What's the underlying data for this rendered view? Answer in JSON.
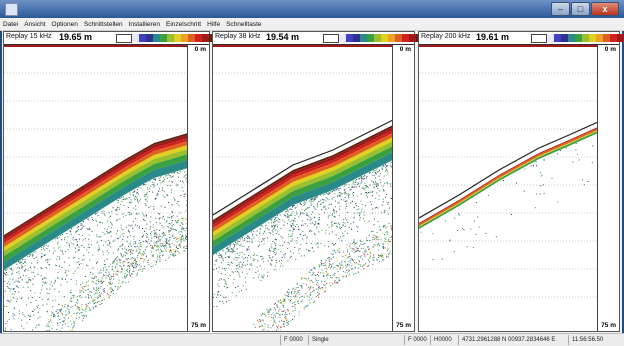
{
  "menu": [
    "Datei",
    "Ansicht",
    "Optionen",
    "Schnittstellen",
    "Installieren",
    "Einzelschritt",
    "Hilfe",
    "Schnelltaste"
  ],
  "window": {
    "minimize": "–",
    "maximize": "□",
    "close": "x"
  },
  "panels": [
    {
      "label": "Replay 15 kHz",
      "depth": "19.65 m",
      "depth_top": "0 m",
      "depth_bottom": "75 m"
    },
    {
      "label": "Replay 38 kHz",
      "depth": "19.54 m",
      "depth_top": "0 m",
      "depth_bottom": "75 m"
    },
    {
      "label": "Replay 200 kHz",
      "depth": "19.61 m",
      "depth_top": "0 m",
      "depth_bottom": "75 m"
    }
  ],
  "echo_colors": [
    "#e8e8ff",
    "#4040c0",
    "#303090",
    "#2a8a8a",
    "#3aa040",
    "#9ac030",
    "#e0d020",
    "#f0a020",
    "#e06020",
    "#d02020",
    "#a01818",
    "#602010"
  ],
  "status": {
    "f1": "F 0000",
    "mode": "Single",
    "f2": "F 0000",
    "f3": "H0000",
    "position": "4731.2961288 N 00937.2834646 E",
    "time": "11:56:56.50"
  }
}
